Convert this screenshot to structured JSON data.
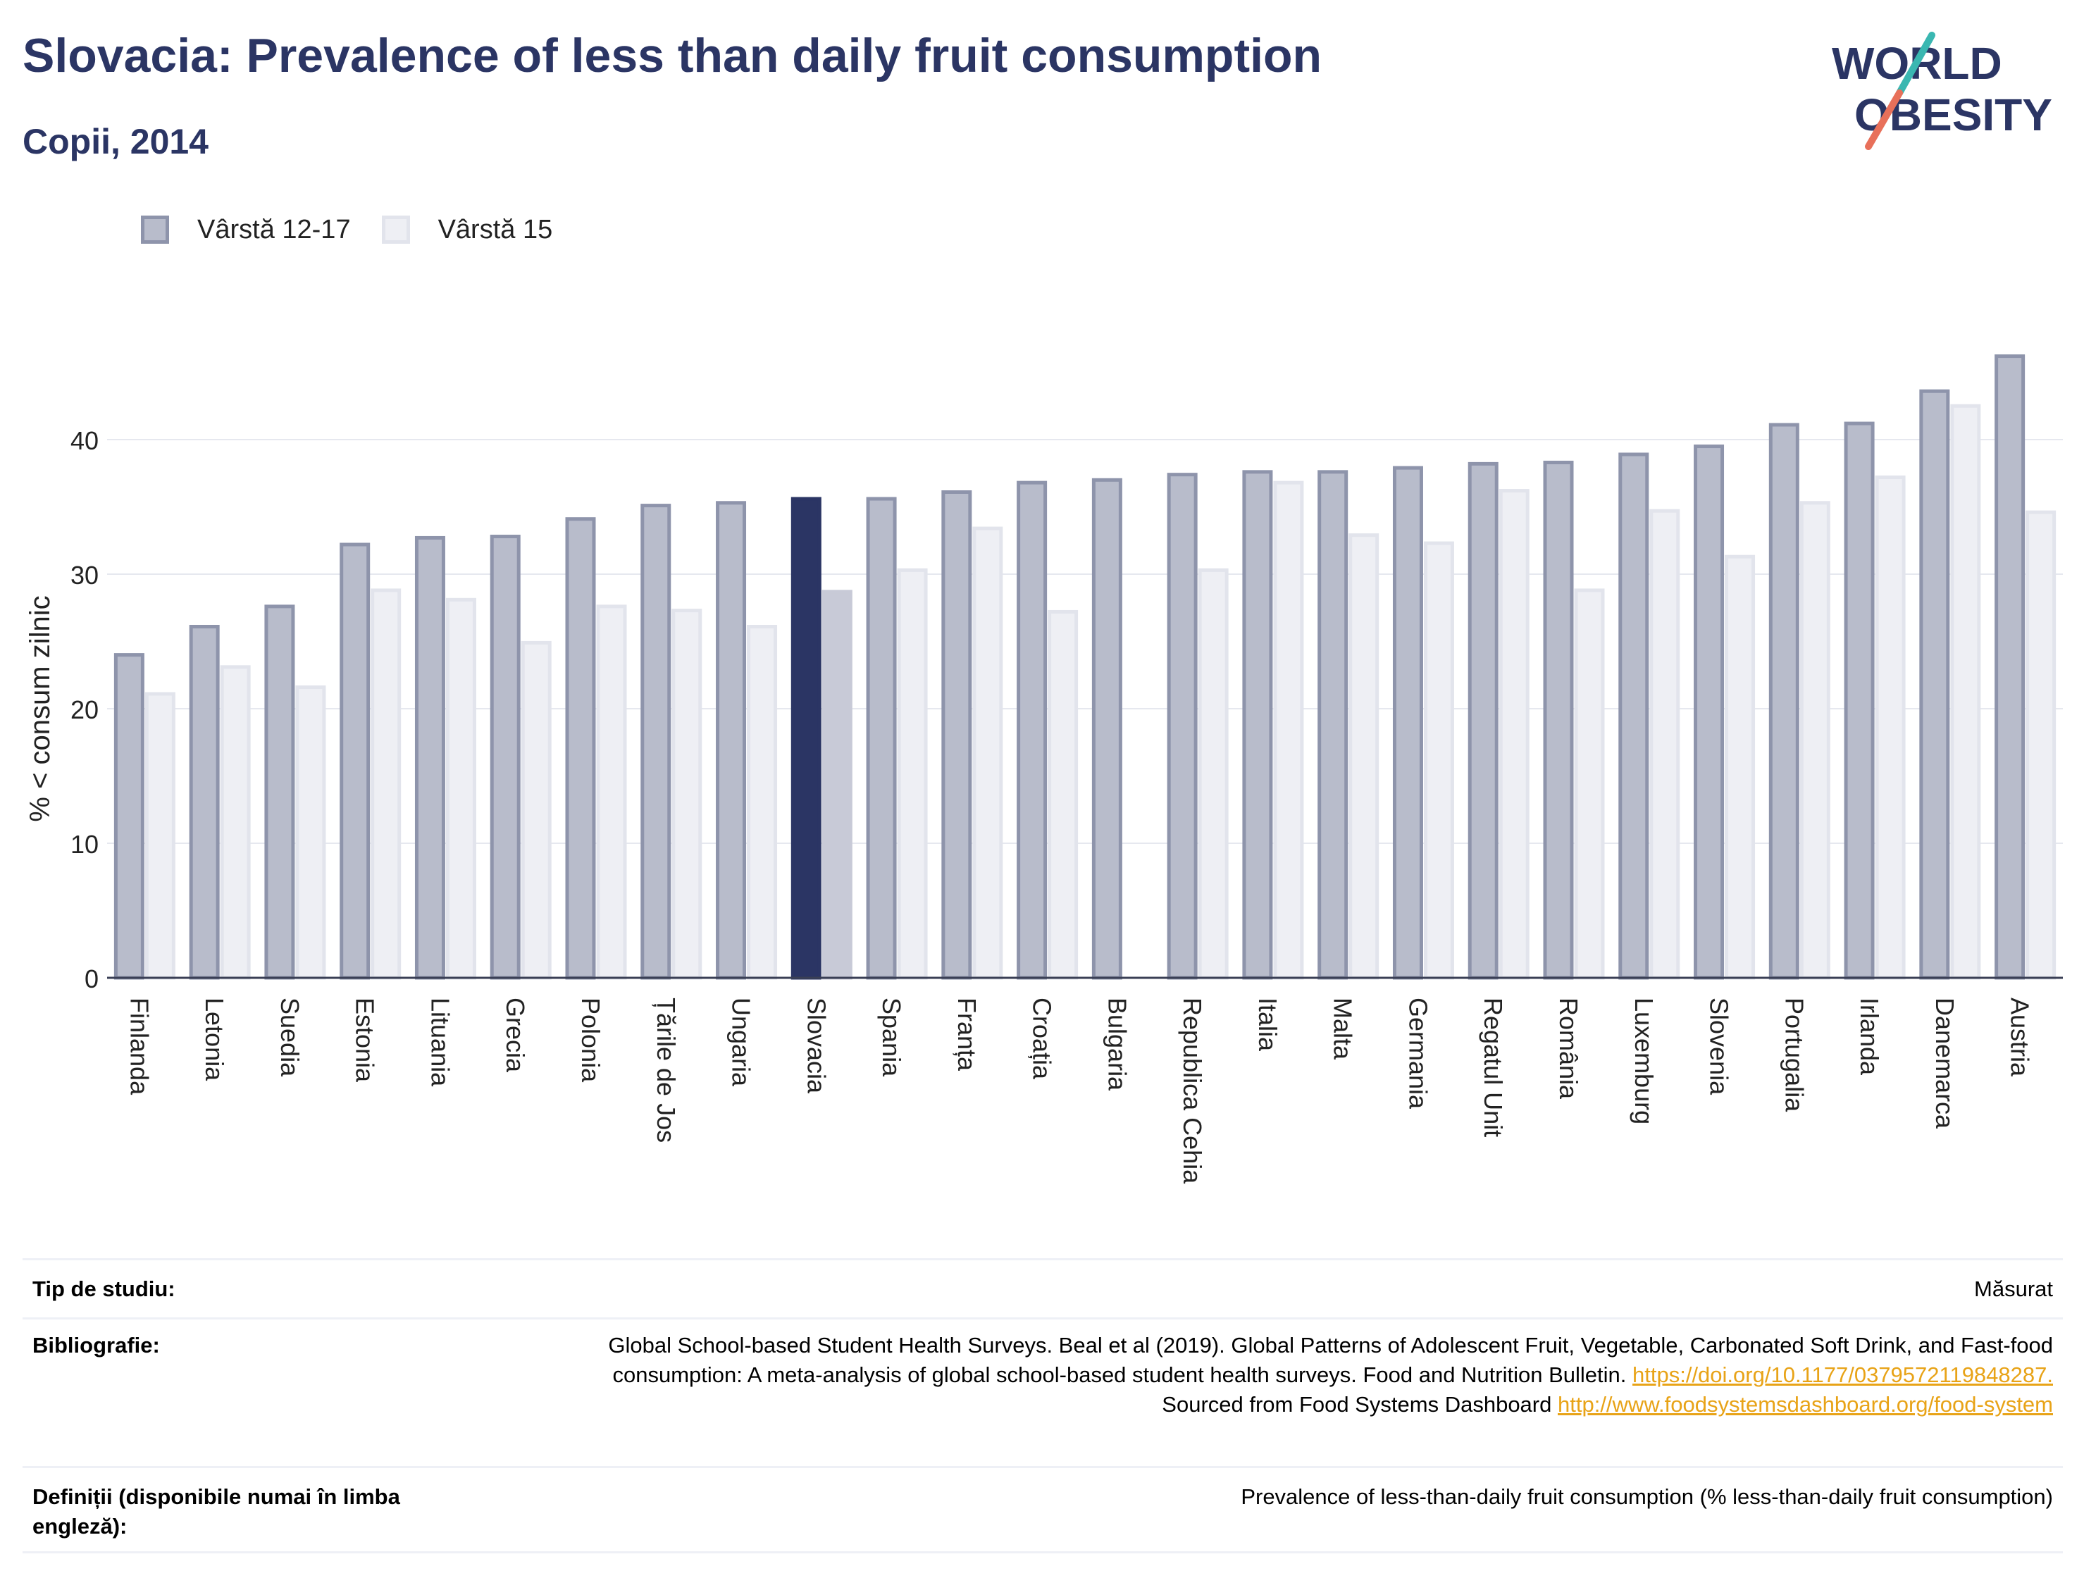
{
  "header": {
    "title": "Slovacia: Prevalence of less than daily fruit consumption",
    "subtitle": "Copii, 2014"
  },
  "logo": {
    "line1": "WORLD",
    "line2": "OBESITY",
    "accent_teal": "#3ab7b1",
    "accent_coral": "#e8705a"
  },
  "colors": {
    "title": "#2b3564",
    "series1_fill": "#b8bccb",
    "series1_stroke": "#8e94ab",
    "series2_fill": "#eeeff4",
    "series2_stroke": "#e2e4ec",
    "highlight1": "#2b3564",
    "highlight2": "#c8cad7",
    "link": "#e8a317"
  },
  "chart_data": {
    "type": "bar",
    "ylabel": "% < consum zilnic",
    "ylim": [
      0,
      50
    ],
    "yticks": [
      0,
      10,
      20,
      30,
      40
    ],
    "grid": true,
    "legend_position": "top-left",
    "highlight": "Slovacia",
    "categories": [
      "Finlanda",
      "Letonia",
      "Suedia",
      "Estonia",
      "Lituania",
      "Grecia",
      "Polonia",
      "Țările de Jos",
      "Ungaria",
      "Slovacia",
      "Spania",
      "Franța",
      "Croația",
      "Bulgaria",
      "Republica Cehia",
      "Italia",
      "Malta",
      "Germania",
      "Regatul Unit",
      "România",
      "Luxemburg",
      "Slovenia",
      "Portugalia",
      "Irlanda",
      "Danemarca",
      "Austria"
    ],
    "series": [
      {
        "name": "Vârstă 12-17",
        "values": [
          24.0,
          26.1,
          27.6,
          32.2,
          32.7,
          32.8,
          34.1,
          35.1,
          35.3,
          35.6,
          35.6,
          36.1,
          36.8,
          37.0,
          37.4,
          37.6,
          37.6,
          37.9,
          38.2,
          38.3,
          38.9,
          39.5,
          41.1,
          41.2,
          43.6,
          46.2
        ]
      },
      {
        "name": "Vârstă 15",
        "values": [
          21.1,
          23.1,
          21.6,
          28.8,
          28.1,
          24.9,
          27.6,
          27.3,
          26.1,
          28.7,
          30.3,
          33.4,
          27.2,
          null,
          30.3,
          36.8,
          32.9,
          32.3,
          36.2,
          28.8,
          34.7,
          31.3,
          35.3,
          37.2,
          42.5,
          34.6
        ]
      }
    ]
  },
  "info": {
    "study_type_label": "Tip de studiu:",
    "study_type_value": "Măsurat",
    "bibliography_label": "Bibliografie:",
    "bibliography_text1": "Global School-based Student Health Surveys. Beal et al (2019). Global Patterns of Adolescent Fruit, Vegetable, Carbonated Soft Drink, and Fast-food consumption: A meta-analysis of global school-based student health surveys. Food and Nutrition Bulletin.",
    "bibliography_link1": "https://doi.org/10.1177/0379572119848287.",
    "bibliography_text2": "Sourced from Food Systems Dashboard",
    "bibliography_link2": "http://www.foodsystemsdashboard.org/food-system",
    "definitions_label": "Definiții (disponibile numai în limba engleză):",
    "definitions_value": "Prevalence of less-than-daily fruit consumption (% less-than-daily fruit consumption)"
  }
}
